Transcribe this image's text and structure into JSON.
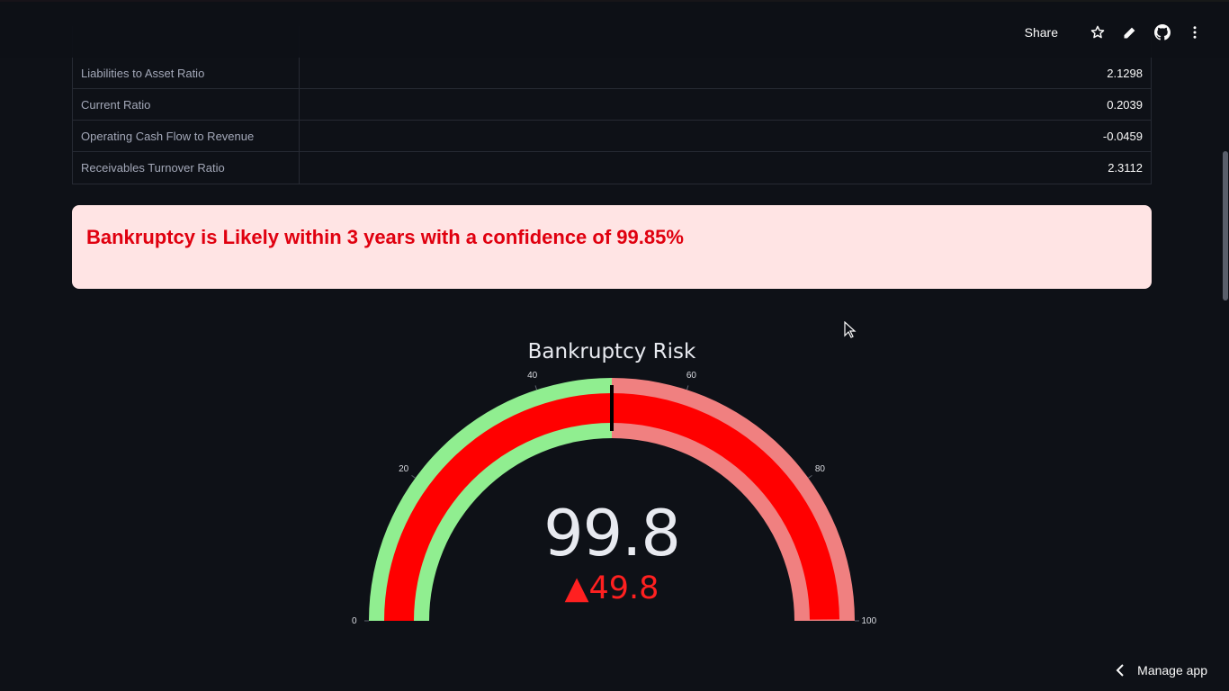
{
  "toolbar": {
    "share_label": "Share"
  },
  "table": {
    "rows": [
      {
        "label": "Liabilities to Asset Ratio",
        "value": "2.1298"
      },
      {
        "label": "Current Ratio",
        "value": "0.2039"
      },
      {
        "label": "Operating Cash Flow to Revenue",
        "value": "-0.0459"
      },
      {
        "label": "Receivables Turnover Ratio",
        "value": "2.3112"
      }
    ]
  },
  "alert": {
    "message": "Bankruptcy is Likely within 3 years with a confidence of 99.85%",
    "text_color": "#e0000f",
    "background_color": "#ffe4e4"
  },
  "gauge": {
    "title": "Bankruptcy Risk",
    "value_text": "99.8",
    "delta_text": "▲49.8",
    "value": 99.8,
    "reference": 50,
    "range": [
      0,
      100
    ],
    "ticks": [
      "0",
      "20",
      "40",
      "60",
      "80",
      "100"
    ],
    "steps": [
      {
        "range": [
          0,
          50
        ],
        "color": "#90ee90"
      },
      {
        "range": [
          50,
          100
        ],
        "color": "#f08080"
      }
    ],
    "bar_color": "#ff0000",
    "threshold": 50,
    "threshold_color": "#000000"
  },
  "footer": {
    "manage_app_label": "Manage app"
  },
  "icons": [
    "star-icon",
    "pencil-icon",
    "github-icon",
    "more-vert-icon",
    "chevron-left-icon",
    "mouse-cursor-icon"
  ]
}
